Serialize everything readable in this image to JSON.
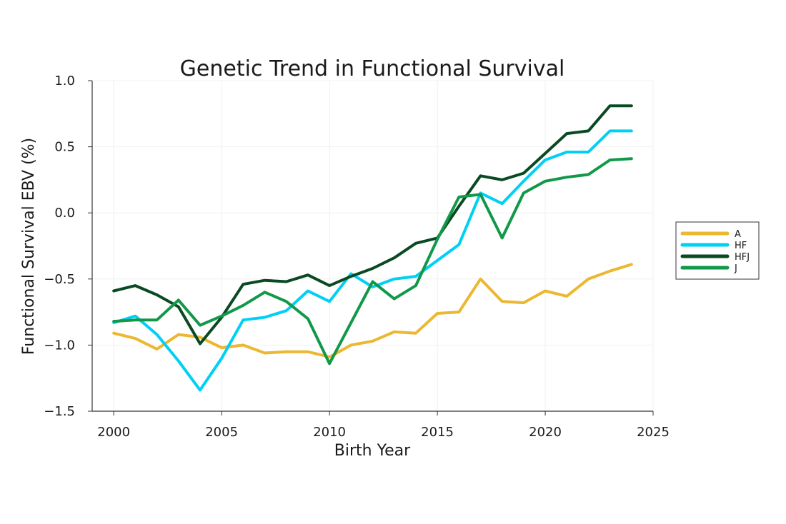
{
  "chart_data": {
    "type": "line",
    "title": "Genetic Trend in Functional Survival",
    "xlabel": "Birth Year",
    "ylabel": "Functional Survival EBV (%)",
    "xlim": [
      1999,
      2025
    ],
    "ylim": [
      -1.5,
      1.0
    ],
    "xticks": [
      2000,
      2005,
      2010,
      2015,
      2020,
      2025
    ],
    "xtick_labels": [
      "2000",
      "2005",
      "2010",
      "2015",
      "2020",
      "2025"
    ],
    "yticks": [
      -1.5,
      -1.0,
      -0.5,
      0.0,
      0.5,
      1.0
    ],
    "ytick_labels": [
      "−1.5",
      "−1.0",
      "−0.5",
      "0.0",
      "0.5",
      "1.0"
    ],
    "grid": true,
    "legend_position": "right",
    "x": [
      2000,
      2001,
      2002,
      2003,
      2004,
      2005,
      2006,
      2007,
      2008,
      2009,
      2010,
      2011,
      2012,
      2013,
      2014,
      2015,
      2016,
      2017,
      2018,
      2019,
      2020,
      2021,
      2022,
      2023,
      2024
    ],
    "series": [
      {
        "name": "A",
        "color": "#ecb731",
        "values": [
          -0.91,
          -0.95,
          -1.03,
          -0.92,
          -0.94,
          -1.02,
          -1.0,
          -1.06,
          -1.05,
          -1.05,
          -1.09,
          -1.0,
          -0.97,
          -0.9,
          -0.91,
          -0.76,
          -0.75,
          -0.5,
          -0.67,
          -0.68,
          -0.59,
          -0.63,
          -0.5,
          -0.44,
          -0.39
        ]
      },
      {
        "name": "HF",
        "color": "#00d0f5",
        "values": [
          -0.83,
          -0.78,
          -0.92,
          -1.12,
          -1.34,
          -1.1,
          -0.81,
          -0.79,
          -0.74,
          -0.59,
          -0.67,
          -0.46,
          -0.56,
          -0.5,
          -0.48,
          -0.36,
          -0.24,
          0.15,
          0.07,
          0.24,
          0.4,
          0.46,
          0.46,
          0.62,
          0.62
        ]
      },
      {
        "name": "HFJ",
        "color": "#0a4a22",
        "values": [
          -0.59,
          -0.55,
          -0.62,
          -0.71,
          -0.99,
          -0.79,
          -0.54,
          -0.51,
          -0.52,
          -0.47,
          -0.55,
          -0.48,
          -0.42,
          -0.34,
          -0.23,
          -0.19,
          0.05,
          0.28,
          0.25,
          0.3,
          0.45,
          0.6,
          0.62,
          0.81,
          0.81
        ]
      },
      {
        "name": "J",
        "color": "#119848",
        "values": [
          -0.82,
          -0.81,
          -0.81,
          -0.66,
          -0.85,
          -0.78,
          -0.7,
          -0.6,
          -0.67,
          -0.8,
          -1.14,
          -0.83,
          -0.52,
          -0.65,
          -0.55,
          -0.2,
          0.12,
          0.14,
          -0.19,
          0.15,
          0.24,
          0.27,
          0.29,
          0.4,
          0.41
        ]
      }
    ]
  }
}
